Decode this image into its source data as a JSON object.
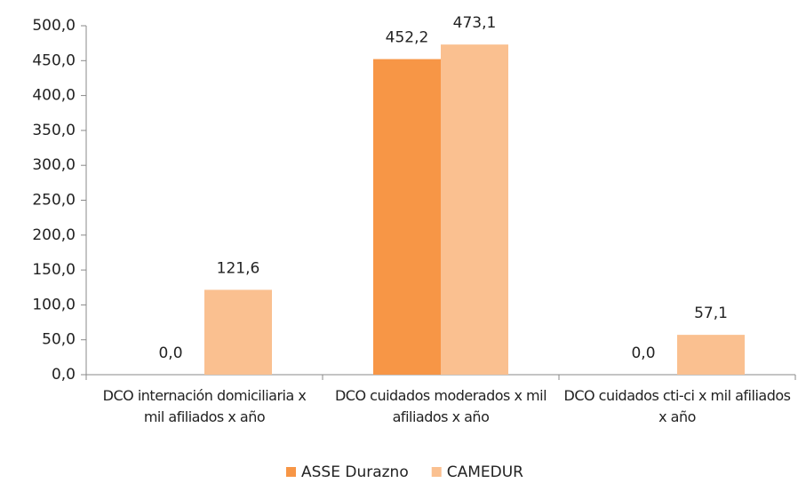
{
  "chart_data": {
    "type": "bar",
    "categories": [
      "DCO internación domiciliaria x mil afiliados x año",
      "DCO cuidados moderados x mil afiliados x año",
      "DCO cuidados cti-ci x mil afiliados x año"
    ],
    "series": [
      {
        "name": "ASSE Durazno",
        "color": "#f79646",
        "values": [
          0,
          452.2,
          0
        ],
        "value_labels": [
          "0,0",
          "452,2",
          "0,0"
        ]
      },
      {
        "name": "CAMEDUR",
        "color": "#fac090",
        "values": [
          121.6,
          473.1,
          57.1
        ],
        "value_labels": [
          "121,6",
          "473,1",
          "57,1"
        ]
      }
    ],
    "ylim": [
      0,
      500
    ],
    "yticks": [
      {
        "value": 0,
        "label": "0,0"
      },
      {
        "value": 50,
        "label": "50,0"
      },
      {
        "value": 100,
        "label": "100,0"
      },
      {
        "value": 150,
        "label": "150,0"
      },
      {
        "value": 200,
        "label": "200,0"
      },
      {
        "value": 250,
        "label": "250,0"
      },
      {
        "value": 300,
        "label": "300,0"
      },
      {
        "value": 350,
        "label": "350,0"
      },
      {
        "value": 400,
        "label": "400,0"
      },
      {
        "value": 450,
        "label": "450,0"
      },
      {
        "value": 500,
        "label": "500,0"
      }
    ],
    "grid": false,
    "legend": "bottom"
  }
}
